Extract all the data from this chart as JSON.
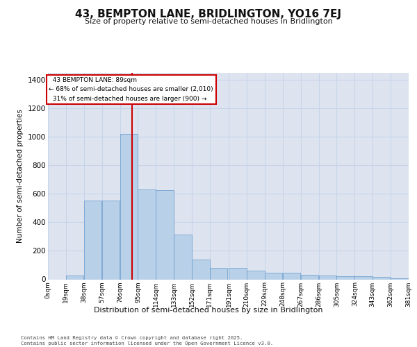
{
  "title": "43, BEMPTON LANE, BRIDLINGTON, YO16 7EJ",
  "subtitle": "Size of property relative to semi-detached houses in Bridlington",
  "xlabel": "Distribution of semi-detached houses by size in Bridlington",
  "ylabel": "Number of semi-detached properties",
  "property_size": 89,
  "property_label": "43 BEMPTON LANE: 89sqm",
  "pct_smaller": 68,
  "n_smaller": 2010,
  "pct_larger": 31,
  "n_larger": 900,
  "bin_edges": [
    0,
    19,
    38,
    57,
    76,
    95,
    114,
    133,
    152,
    171,
    191,
    210,
    229,
    248,
    267,
    286,
    305,
    324,
    343,
    362,
    381
  ],
  "bin_labels": [
    "0sqm",
    "19sqm",
    "38sqm",
    "57sqm",
    "76sqm",
    "95sqm",
    "114sqm",
    "133sqm",
    "152sqm",
    "171sqm",
    "191sqm",
    "210sqm",
    "229sqm",
    "248sqm",
    "267sqm",
    "286sqm",
    "305sqm",
    "324sqm",
    "343sqm",
    "362sqm",
    "381sqm"
  ],
  "counts": [
    0,
    25,
    555,
    555,
    1020,
    630,
    625,
    315,
    140,
    80,
    80,
    60,
    45,
    45,
    30,
    25,
    20,
    20,
    15,
    5,
    5
  ],
  "bar_color": "#b8d0e8",
  "bar_edge_color": "#6699cc",
  "grid_color": "#c8d4e8",
  "bg_color": "#dde4f0",
  "redline_color": "#cc0000",
  "annotation_box_color": "#cc0000",
  "ylim": [
    0,
    1450
  ],
  "yticks": [
    0,
    200,
    400,
    600,
    800,
    1000,
    1200,
    1400
  ],
  "footer_line1": "Contains HM Land Registry data © Crown copyright and database right 2025.",
  "footer_line2": "Contains public sector information licensed under the Open Government Licence v3.0."
}
